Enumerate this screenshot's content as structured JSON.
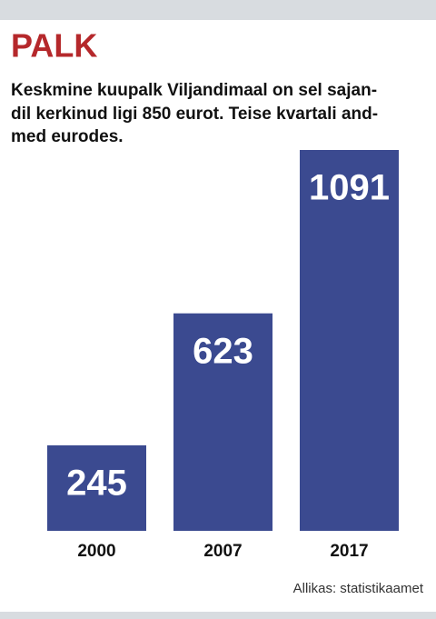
{
  "chart_data": {
    "type": "bar",
    "title": "PALK",
    "subtitle": [
      "Keskmine kuupalk Viljandimaal on sel sajan-",
      "dil kerkinud ligi 850 eurot. Teise kvartali and-",
      "med eurodes."
    ],
    "categories": [
      "2000",
      "2007",
      "2017"
    ],
    "values": [
      245,
      623,
      1091
    ],
    "color": "#3b4a90",
    "source": "Allikas: statistikaamet"
  }
}
